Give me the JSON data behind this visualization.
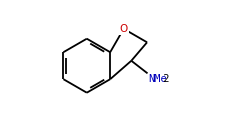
{
  "bg_color": "#ffffff",
  "bond_color": "#000000",
  "O_color": "#cc0000",
  "N_color": "#0000bb",
  "text_color": "#000000",
  "lw": 1.3,
  "figsize": [
    2.33,
    1.35
  ],
  "dpi": 100,
  "xlim": [
    -0.75,
    1.05
  ],
  "ylim": [
    -0.75,
    0.75
  ]
}
